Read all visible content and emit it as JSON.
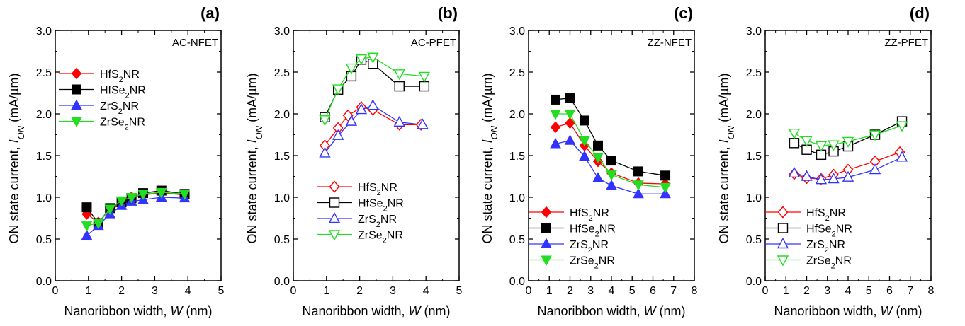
{
  "figure": {
    "ylabel_prefix": "ON state current, ",
    "ylabel_var": "I",
    "ylabel_sub": "ON",
    "ylabel_unit": " (mA/µm)",
    "xlabel_prefix": "Nanoribbon width, ",
    "xlabel_var": "W",
    "xlabel_unit": " (nm)"
  },
  "colors": {
    "HfS2": "#ff0000",
    "HfSe2": "#000000",
    "ZrS2": "#3333ff",
    "ZrSe2": "#22dd22"
  },
  "chart_data": [
    {
      "type": "line",
      "panel_label": "(a)",
      "device": "AC-NFET",
      "xlim": [
        0,
        5
      ],
      "ylim": [
        0,
        3
      ],
      "xticks": [
        0,
        1,
        2,
        3,
        4,
        5
      ],
      "yticks": [
        0.0,
        0.5,
        1.0,
        1.5,
        2.0,
        2.5,
        3.0
      ],
      "grid": false,
      "legend_loc": "upper-left",
      "series": [
        {
          "name": "HfS2NR",
          "name_parts": [
            "HfS",
            "2",
            "NR"
          ],
          "color": "#ff0000",
          "marker": "diamond",
          "filled": true,
          "x": [
            0.95,
            1.3,
            1.65,
            2.0,
            2.3,
            2.65,
            3.2,
            3.9
          ],
          "y": [
            0.8,
            0.7,
            0.85,
            0.92,
            1.0,
            1.03,
            1.05,
            1.03
          ]
        },
        {
          "name": "HfSe2NR",
          "name_parts": [
            "HfSe",
            "2",
            "NR"
          ],
          "color": "#000000",
          "marker": "square",
          "filled": true,
          "x": [
            0.95,
            1.3,
            1.65,
            2.0,
            2.3,
            2.65,
            3.2,
            3.9
          ],
          "y": [
            0.88,
            0.69,
            0.87,
            0.94,
            0.99,
            1.05,
            1.08,
            1.04
          ]
        },
        {
          "name": "ZrS2NR",
          "name_parts": [
            "ZrS",
            "2",
            "NR"
          ],
          "color": "#3333ff",
          "marker": "triangle-up",
          "filled": true,
          "x": [
            0.95,
            1.3,
            1.65,
            2.0,
            2.3,
            2.65,
            3.2,
            3.9
          ],
          "y": [
            0.54,
            0.66,
            0.8,
            0.9,
            0.95,
            0.97,
            1.0,
            0.99
          ]
        },
        {
          "name": "ZrSe2NR",
          "name_parts": [
            "ZrSe",
            "2",
            "NR"
          ],
          "color": "#22dd22",
          "marker": "triangle-down",
          "filled": true,
          "x": [
            0.95,
            1.3,
            1.65,
            2.0,
            2.3,
            2.65,
            3.2,
            3.9
          ],
          "y": [
            0.66,
            0.69,
            0.86,
            0.96,
            1.0,
            1.04,
            1.06,
            1.04
          ]
        }
      ]
    },
    {
      "type": "line",
      "panel_label": "(b)",
      "device": "AC-PFET",
      "xlim": [
        0,
        5
      ],
      "ylim": [
        0,
        3
      ],
      "xticks": [
        0,
        1,
        2,
        3,
        4,
        5
      ],
      "yticks": [
        0.0,
        0.5,
        1.0,
        1.5,
        2.0,
        2.5,
        3.0
      ],
      "grid": false,
      "legend_loc": "lower-right",
      "series": [
        {
          "name": "HfS2NR",
          "name_parts": [
            "HfS",
            "2",
            "NR"
          ],
          "color": "#ff0000",
          "marker": "diamond",
          "filled": false,
          "x": [
            0.95,
            1.35,
            1.65,
            2.05,
            2.4,
            3.2,
            3.85
          ],
          "y": [
            1.62,
            1.83,
            1.98,
            2.08,
            2.05,
            1.87,
            1.87
          ]
        },
        {
          "name": "HfSe2NR",
          "name_parts": [
            "HfSe",
            "2",
            "NR"
          ],
          "color": "#000000",
          "marker": "square",
          "filled": false,
          "x": [
            0.95,
            1.35,
            1.75,
            2.05,
            2.4,
            3.2,
            3.95
          ],
          "y": [
            1.96,
            2.29,
            2.45,
            2.65,
            2.6,
            2.33,
            2.33
          ]
        },
        {
          "name": "ZrS2NR",
          "name_parts": [
            "ZrS",
            "2",
            "NR"
          ],
          "color": "#3333ff",
          "marker": "triangle-up",
          "filled": false,
          "x": [
            0.95,
            1.35,
            1.75,
            2.05,
            2.4,
            3.2,
            3.9
          ],
          "y": [
            1.53,
            1.74,
            1.91,
            2.05,
            2.1,
            1.9,
            1.87
          ]
        },
        {
          "name": "ZrSe2NR",
          "name_parts": [
            "ZrSe",
            "2",
            "NR"
          ],
          "color": "#22dd22",
          "marker": "triangle-down",
          "filled": false,
          "x": [
            0.95,
            1.35,
            1.75,
            2.05,
            2.4,
            3.2,
            3.95
          ],
          "y": [
            1.93,
            2.3,
            2.55,
            2.66,
            2.68,
            2.48,
            2.45
          ]
        }
      ]
    },
    {
      "type": "line",
      "panel_label": "(c)",
      "device": "ZZ-NFET",
      "xlim": [
        0,
        8
      ],
      "ylim": [
        0,
        3
      ],
      "xticks": [
        0,
        1,
        2,
        3,
        4,
        5,
        6,
        7,
        8
      ],
      "yticks": [
        0.0,
        0.5,
        1.0,
        1.5,
        2.0,
        2.5,
        3.0
      ],
      "grid": false,
      "legend_loc": "lower-left",
      "series": [
        {
          "name": "HfS2NR",
          "name_parts": [
            "HfS",
            "2",
            "NR"
          ],
          "color": "#ff0000",
          "marker": "diamond",
          "filled": true,
          "x": [
            1.3,
            2.0,
            2.7,
            3.35,
            4.0,
            5.3,
            6.6
          ],
          "y": [
            1.84,
            1.89,
            1.62,
            1.43,
            1.29,
            1.17,
            1.16
          ]
        },
        {
          "name": "HfSe2NR",
          "name_parts": [
            "HfSe",
            "2",
            "NR"
          ],
          "color": "#000000",
          "marker": "square",
          "filled": true,
          "x": [
            1.3,
            2.0,
            2.7,
            3.35,
            4.0,
            5.3,
            6.6
          ],
          "y": [
            2.17,
            2.19,
            1.92,
            1.62,
            1.44,
            1.31,
            1.26
          ]
        },
        {
          "name": "ZrS2NR",
          "name_parts": [
            "ZrS",
            "2",
            "NR"
          ],
          "color": "#3333ff",
          "marker": "triangle-up",
          "filled": true,
          "x": [
            1.3,
            2.0,
            2.7,
            3.35,
            4.0,
            5.3,
            6.6
          ],
          "y": [
            1.64,
            1.68,
            1.49,
            1.23,
            1.14,
            1.04,
            1.04
          ]
        },
        {
          "name": "ZrSe2NR",
          "name_parts": [
            "ZrSe",
            "2",
            "NR"
          ],
          "color": "#22dd22",
          "marker": "triangle-down",
          "filled": true,
          "x": [
            1.3,
            2.0,
            2.7,
            3.35,
            4.0,
            5.3,
            6.6
          ],
          "y": [
            2.0,
            2.0,
            1.68,
            1.48,
            1.27,
            1.15,
            1.12
          ]
        }
      ]
    },
    {
      "type": "line",
      "panel_label": "(d)",
      "device": "ZZ-PFET",
      "xlim": [
        0,
        8
      ],
      "ylim": [
        0,
        3
      ],
      "xticks": [
        0,
        1,
        2,
        3,
        4,
        5,
        6,
        7,
        8
      ],
      "yticks": [
        0.0,
        0.5,
        1.0,
        1.5,
        2.0,
        2.5,
        3.0
      ],
      "grid": false,
      "legend_loc": "lower-left",
      "series": [
        {
          "name": "HfS2NR",
          "name_parts": [
            "HfS",
            "2",
            "NR"
          ],
          "color": "#ff0000",
          "marker": "diamond",
          "filled": false,
          "x": [
            1.4,
            2.0,
            2.7,
            3.3,
            4.0,
            5.3,
            6.5
          ],
          "y": [
            1.28,
            1.23,
            1.22,
            1.27,
            1.33,
            1.43,
            1.54
          ]
        },
        {
          "name": "HfSe2NR",
          "name_parts": [
            "HfSe",
            "2",
            "NR"
          ],
          "color": "#000000",
          "marker": "square",
          "filled": false,
          "x": [
            1.4,
            2.0,
            2.7,
            3.3,
            4.0,
            5.3,
            6.6
          ],
          "y": [
            1.65,
            1.57,
            1.51,
            1.55,
            1.61,
            1.75,
            1.91
          ]
        },
        {
          "name": "ZrS2NR",
          "name_parts": [
            "ZrS",
            "2",
            "NR"
          ],
          "color": "#3333ff",
          "marker": "triangle-up",
          "filled": false,
          "x": [
            1.4,
            2.0,
            2.7,
            3.3,
            4.0,
            5.3,
            6.6
          ],
          "y": [
            1.29,
            1.25,
            1.21,
            1.22,
            1.24,
            1.33,
            1.48
          ]
        },
        {
          "name": "ZrSe2NR",
          "name_parts": [
            "ZrSe",
            "2",
            "NR"
          ],
          "color": "#22dd22",
          "marker": "triangle-down",
          "filled": false,
          "x": [
            1.4,
            2.0,
            2.7,
            3.3,
            4.0,
            5.3,
            6.6
          ],
          "y": [
            1.77,
            1.68,
            1.62,
            1.63,
            1.67,
            1.75,
            1.86
          ]
        }
      ]
    }
  ]
}
